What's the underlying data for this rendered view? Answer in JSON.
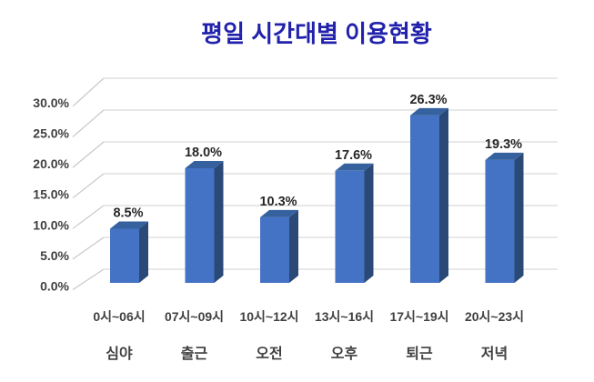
{
  "chart_data": {
    "type": "bar",
    "style": "3d-column",
    "title": "평일 시간대별 이용현황",
    "categories": [
      "0시~06시",
      "07시~09시",
      "10시~12시",
      "13시~16시",
      "17시~19시",
      "20시~23시"
    ],
    "category_sublabels": [
      "심야",
      "출근",
      "오전",
      "오후",
      "퇴근",
      "저녁"
    ],
    "values": [
      8.5,
      18.0,
      10.3,
      17.6,
      26.3,
      19.3
    ],
    "data_labels": [
      "8.5%",
      "18.0%",
      "10.3%",
      "17.6%",
      "26.3%",
      "19.3%"
    ],
    "y_ticks": [
      "0.0%",
      "5.0%",
      "10.0%",
      "15.0%",
      "20.0%",
      "25.0%",
      "30.0%"
    ],
    "ylim": [
      0,
      30
    ],
    "y_tick_step": 5,
    "xlabel": "",
    "ylabel": "",
    "grid": "horizontal",
    "legend": "none",
    "colors": {
      "title": "#2121AC",
      "bar_front": "#4472C4",
      "bar_top": "#35619F",
      "bar_side": "#2A4977",
      "gridline": "#D9D9D9",
      "tick_line": "#C9C9C9",
      "axis_text": "#404040",
      "data_label_text": "#262626"
    }
  }
}
